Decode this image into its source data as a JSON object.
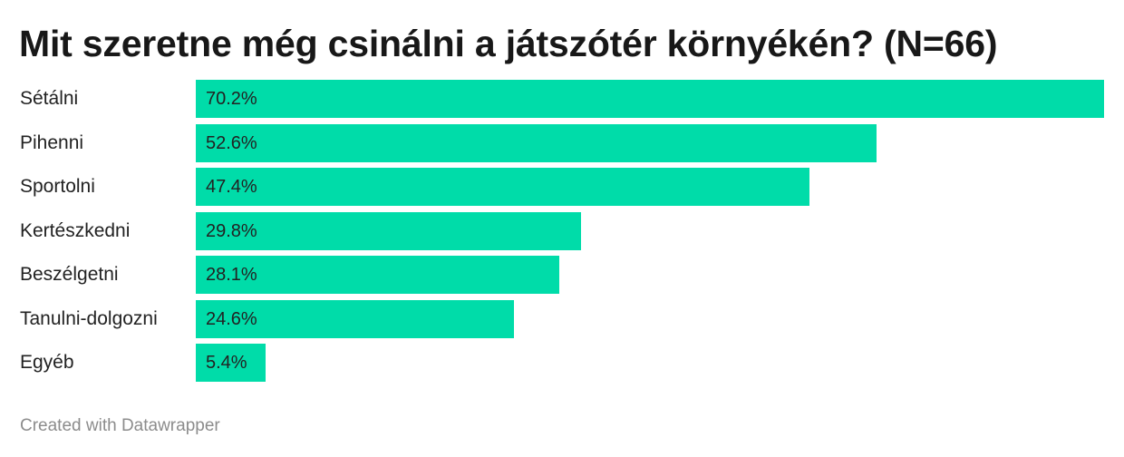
{
  "chart_data": {
    "type": "bar",
    "orientation": "horizontal",
    "title": "Mit szeretne még csinálni a játszótér környékén? (N=66)",
    "categories": [
      "Sétálni",
      "Pihenni",
      "Sportolni",
      "Kertészkedni",
      "Beszélgetni",
      "Tanulni-dolgozni",
      "Egyéb"
    ],
    "values": [
      70.2,
      52.6,
      47.4,
      29.8,
      28.1,
      24.6,
      5.4
    ],
    "value_labels": [
      "70.2%",
      "52.6%",
      "47.4%",
      "29.8%",
      "28.1%",
      "24.6%",
      "5.4%"
    ],
    "xlim": [
      0,
      70.2
    ],
    "grid": false,
    "legend": "none",
    "bar_color": "#00dca9"
  },
  "footer": {
    "credit": "Created with Datawrapper"
  }
}
